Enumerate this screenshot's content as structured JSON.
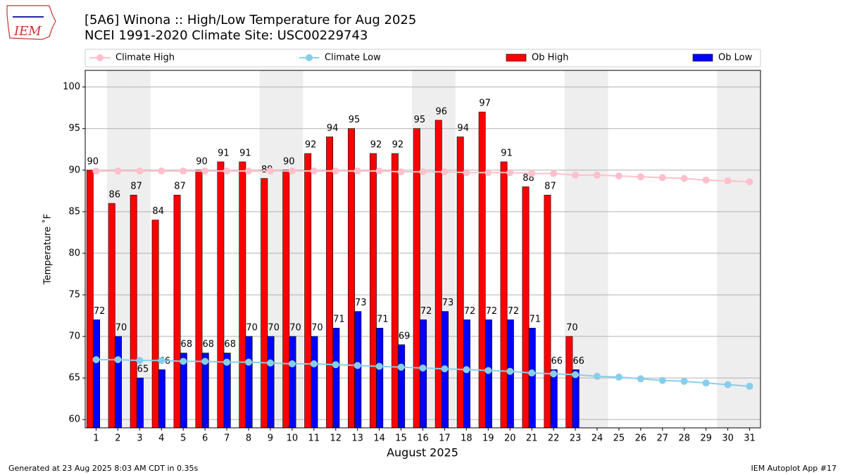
{
  "chart_data": {
    "type": "bar",
    "title": "[5A6] Winona :: High/Low Temperature for Aug 2025",
    "subtitle": "NCEI 1991-2020 Climate Site: USC00229743",
    "logo_text": "IEM",
    "y_label": "Temperature ˚F",
    "x_label": "August 2025",
    "footer_left": "Generated at 23 Aug 2025 8:03 AM CDT in 0.35s",
    "footer_right": "IEM Autoplot App #17",
    "x": [
      1,
      2,
      3,
      4,
      5,
      6,
      7,
      8,
      9,
      10,
      11,
      12,
      13,
      14,
      15,
      16,
      17,
      18,
      19,
      20,
      21,
      22,
      23,
      24,
      25,
      26,
      27,
      28,
      29,
      30,
      31
    ],
    "xlim": [
      0.5,
      31.5
    ],
    "xticks": [
      1,
      2,
      3,
      4,
      5,
      6,
      7,
      8,
      9,
      10,
      11,
      12,
      13,
      14,
      15,
      16,
      17,
      18,
      19,
      20,
      21,
      22,
      23,
      24,
      25,
      26,
      27,
      28,
      29,
      30,
      31
    ],
    "ylim": [
      59,
      102
    ],
    "yticks": [
      60,
      65,
      70,
      75,
      80,
      85,
      90,
      95,
      100
    ],
    "grid": true,
    "shaded_x": [
      2,
      3,
      9,
      10,
      16,
      17,
      23,
      24,
      30,
      31
    ],
    "shade_color": "#eeeeee",
    "series": [
      {
        "name": "Climate High",
        "type": "line",
        "color": "#ffc0cb",
        "values": [
          89.9,
          89.9,
          89.9,
          89.9,
          89.9,
          89.9,
          89.9,
          89.9,
          89.9,
          89.9,
          89.9,
          89.9,
          89.9,
          89.9,
          89.8,
          89.8,
          89.8,
          89.7,
          89.7,
          89.7,
          89.6,
          89.6,
          89.4,
          89.4,
          89.3,
          89.2,
          89.1,
          89.0,
          88.8,
          88.7,
          88.6
        ]
      },
      {
        "name": "Climate Low",
        "type": "line",
        "color": "#87ceeb",
        "values": [
          67.2,
          67.2,
          67.1,
          67.1,
          67.0,
          67.0,
          66.9,
          66.9,
          66.8,
          66.7,
          66.7,
          66.6,
          66.5,
          66.4,
          66.3,
          66.2,
          66.1,
          66.0,
          65.9,
          65.8,
          65.6,
          65.5,
          65.4,
          65.2,
          65.1,
          64.9,
          64.7,
          64.6,
          64.4,
          64.2,
          64.0
        ]
      },
      {
        "name": "Ob High",
        "type": "bar",
        "color": "#ff0000",
        "values": [
          90,
          86,
          87,
          84,
          87,
          90,
          91,
          91,
          89,
          90,
          92,
          94,
          95,
          92,
          92,
          95,
          96,
          94,
          97,
          91,
          88,
          87,
          70,
          null,
          null,
          null,
          null,
          null,
          null,
          null,
          null
        ]
      },
      {
        "name": "Ob Low",
        "type": "bar",
        "color": "#0000ff",
        "values": [
          72,
          70,
          65,
          66,
          68,
          68,
          68,
          70,
          70,
          70,
          70,
          71,
          73,
          71,
          69,
          72,
          73,
          72,
          72,
          72,
          71,
          66,
          66,
          null,
          null,
          null,
          null,
          null,
          null,
          null,
          null
        ]
      }
    ]
  }
}
